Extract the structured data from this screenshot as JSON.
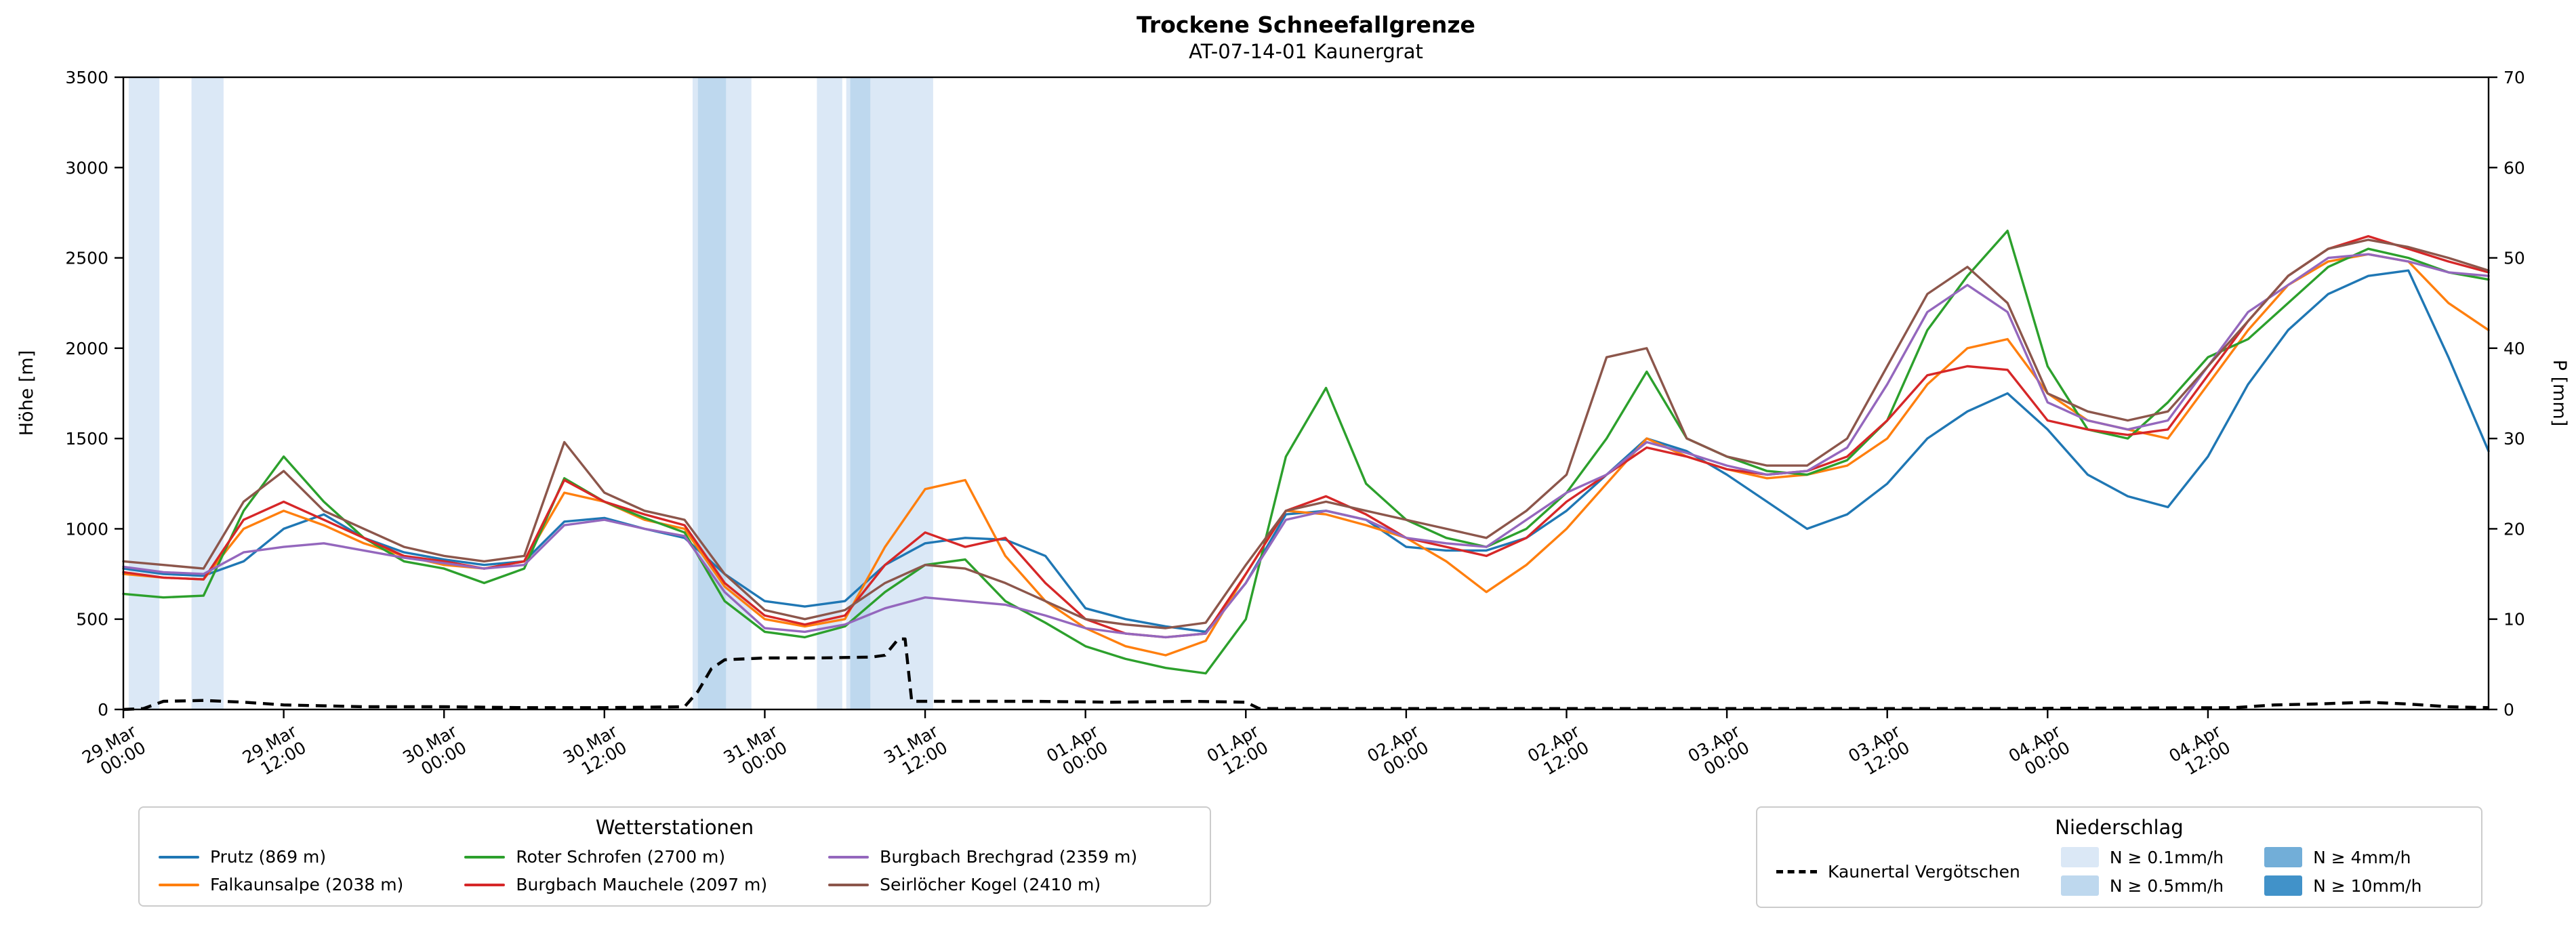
{
  "chart_data": {
    "type": "line",
    "title": "Trockene Schneefallgrenze",
    "subtitle": "AT-07-14-01 Kaunergrat",
    "ylabel_left": "Höhe [m]",
    "ylabel_right": "P [mm]",
    "ylim_left": [
      0,
      3500
    ],
    "ylim_right": [
      0,
      70
    ],
    "x_unit": "hours since 29.Mar 00:00",
    "x_hours_range": [
      0,
      177
    ],
    "grid": "off",
    "legend_left_title": "Wetterstationen",
    "legend_right_title": "Niederschlag",
    "yticks_left": [
      0,
      500,
      1000,
      1500,
      2000,
      2500,
      3000,
      3500
    ],
    "yticks_right": [
      0,
      10,
      20,
      30,
      40,
      50,
      60,
      70
    ],
    "xticks": [
      {
        "h": 0,
        "date": "29.Mar",
        "time": "00:00"
      },
      {
        "h": 12,
        "date": "29.Mar",
        "time": "12:00"
      },
      {
        "h": 24,
        "date": "30.Mar",
        "time": "00:00"
      },
      {
        "h": 36,
        "date": "30.Mar",
        "time": "12:00"
      },
      {
        "h": 48,
        "date": "31.Mar",
        "time": "00:00"
      },
      {
        "h": 60,
        "date": "31.Mar",
        "time": "12:00"
      },
      {
        "h": 72,
        "date": "01.Apr",
        "time": "00:00"
      },
      {
        "h": 84,
        "date": "01.Apr",
        "time": "12:00"
      },
      {
        "h": 96,
        "date": "02.Apr",
        "time": "00:00"
      },
      {
        "h": 108,
        "date": "02.Apr",
        "time": "12:00"
      },
      {
        "h": 120,
        "date": "03.Apr",
        "time": "00:00"
      },
      {
        "h": 132,
        "date": "03.Apr",
        "time": "12:00"
      },
      {
        "h": 144,
        "date": "04.Apr",
        "time": "00:00"
      },
      {
        "h": 156,
        "date": "04.Apr",
        "time": "12:00"
      }
    ],
    "x_grid": [
      0,
      3,
      6,
      9,
      12,
      15,
      18,
      21,
      24,
      27,
      30,
      33,
      36,
      39,
      42,
      45,
      48,
      51,
      54,
      57,
      60,
      63,
      66,
      69,
      72,
      75,
      78,
      81,
      84,
      87,
      90,
      93,
      96,
      99,
      102,
      105,
      108,
      111,
      114,
      117,
      120,
      123,
      126,
      129,
      132,
      135,
      138,
      141,
      144,
      147,
      150,
      153,
      156,
      159,
      162,
      165,
      168,
      171,
      174,
      177
    ],
    "series": [
      {
        "name": "Prutz (869 m)",
        "color": "#1f77b4",
        "values": [
          780,
          750,
          740,
          820,
          1000,
          1080,
          950,
          870,
          830,
          800,
          820,
          1040,
          1060,
          1000,
          950,
          750,
          600,
          570,
          600,
          800,
          920,
          950,
          940,
          850,
          560,
          500,
          460,
          430,
          700,
          1080,
          1100,
          1050,
          900,
          880,
          880,
          950,
          1100,
          1300,
          1500,
          1430,
          1300,
          1150,
          1000,
          1080,
          1250,
          1500,
          1650,
          1750,
          1550,
          1300,
          1180,
          1120,
          1400,
          1800,
          2100,
          2300,
          2400,
          2430,
          1950,
          1430
        ]
      },
      {
        "name": "Falkaunsalpe (2038 m)",
        "color": "#ff7f0e",
        "values": [
          750,
          730,
          720,
          1000,
          1100,
          1020,
          920,
          850,
          800,
          780,
          820,
          1200,
          1150,
          1050,
          1000,
          680,
          500,
          460,
          500,
          900,
          1220,
          1270,
          850,
          600,
          450,
          350,
          300,
          380,
          750,
          1100,
          1080,
          1020,
          950,
          820,
          650,
          800,
          1000,
          1250,
          1500,
          1400,
          1330,
          1280,
          1300,
          1350,
          1500,
          1800,
          2000,
          2050,
          1750,
          1600,
          1550,
          1500,
          1800,
          2100,
          2350,
          2480,
          2520,
          2480,
          2250,
          2100
        ]
      },
      {
        "name": "Roter Schrofen (2700 m)",
        "color": "#2ca02c",
        "values": [
          640,
          620,
          630,
          1100,
          1400,
          1150,
          950,
          820,
          780,
          700,
          780,
          1280,
          1150,
          1060,
          980,
          600,
          430,
          400,
          460,
          650,
          800,
          830,
          600,
          480,
          350,
          280,
          230,
          200,
          500,
          1400,
          1780,
          1250,
          1050,
          950,
          900,
          1000,
          1200,
          1500,
          1870,
          1500,
          1400,
          1320,
          1300,
          1380,
          1600,
          2100,
          2400,
          2650,
          1900,
          1550,
          1500,
          1700,
          1950,
          2050,
          2250,
          2450,
          2550,
          2500,
          2420,
          2380
        ]
      },
      {
        "name": "Burgbach Mauchele (2097 m)",
        "color": "#d62728",
        "values": [
          760,
          730,
          720,
          1050,
          1150,
          1050,
          950,
          850,
          820,
          780,
          820,
          1270,
          1150,
          1080,
          1020,
          700,
          520,
          470,
          520,
          800,
          980,
          900,
          950,
          700,
          500,
          420,
          400,
          420,
          750,
          1100,
          1180,
          1080,
          950,
          900,
          850,
          950,
          1150,
          1300,
          1450,
          1400,
          1330,
          1300,
          1320,
          1400,
          1600,
          1850,
          1900,
          1880,
          1600,
          1550,
          1520,
          1550,
          1850,
          2150,
          2400,
          2550,
          2620,
          2550,
          2480,
          2420
        ]
      },
      {
        "name": "Burgbach Brechgrad (2359 m)",
        "color": "#9467bd",
        "values": [
          790,
          760,
          750,
          870,
          900,
          920,
          880,
          840,
          810,
          780,
          800,
          1020,
          1050,
          1000,
          960,
          650,
          450,
          430,
          470,
          560,
          620,
          600,
          580,
          520,
          450,
          420,
          400,
          420,
          700,
          1050,
          1100,
          1050,
          950,
          920,
          900,
          1050,
          1200,
          1300,
          1480,
          1420,
          1350,
          1300,
          1320,
          1450,
          1800,
          2200,
          2350,
          2200,
          1700,
          1600,
          1550,
          1600,
          1900,
          2200,
          2350,
          2500,
          2520,
          2480,
          2420,
          2400
        ]
      },
      {
        "name": "Seirlöcher Kogel (2410 m)",
        "color": "#8c564b",
        "values": [
          820,
          800,
          780,
          1150,
          1320,
          1100,
          1000,
          900,
          850,
          820,
          850,
          1480,
          1200,
          1100,
          1050,
          750,
          550,
          500,
          550,
          700,
          800,
          780,
          700,
          600,
          500,
          470,
          450,
          480,
          800,
          1100,
          1150,
          1100,
          1050,
          1000,
          950,
          1100,
          1300,
          1950,
          2000,
          1500,
          1400,
          1350,
          1350,
          1500,
          1900,
          2300,
          2450,
          2250,
          1750,
          1650,
          1600,
          1650,
          1900,
          2150,
          2400,
          2550,
          2600,
          2560,
          2500,
          2430
        ]
      }
    ],
    "precip_line": {
      "name": "Kaunertal Vergötschen",
      "color": "#000000",
      "style": "dashed",
      "axis": "right",
      "x": [
        0,
        1.5,
        3,
        6,
        9,
        12,
        18,
        24,
        30,
        36,
        42,
        43,
        44,
        45,
        48,
        52,
        56,
        57,
        58,
        58.5,
        59,
        62,
        68,
        74,
        80,
        84,
        85,
        100,
        120,
        140,
        158,
        161,
        164,
        168,
        171,
        174,
        177
      ],
      "values": [
        0,
        0.1,
        0.9,
        1.0,
        0.8,
        0.5,
        0.3,
        0.3,
        0.2,
        0.2,
        0.3,
        2.0,
        4.5,
        5.5,
        5.7,
        5.7,
        5.8,
        6.0,
        7.8,
        7.8,
        0.9,
        0.9,
        0.9,
        0.8,
        0.9,
        0.8,
        0.1,
        0.1,
        0.1,
        0.1,
        0.2,
        0.5,
        0.6,
        0.8,
        0.6,
        0.3,
        0.2
      ]
    },
    "precip_bands": [
      {
        "from": 0.4,
        "to": 2.7,
        "level": "0.1"
      },
      {
        "from": 5.1,
        "to": 7.5,
        "level": "0.1"
      },
      {
        "from": 42.6,
        "to": 47.0,
        "level": "0.1"
      },
      {
        "from": 43.0,
        "to": 45.1,
        "level": "0.5"
      },
      {
        "from": 51.9,
        "to": 53.8,
        "level": "0.1"
      },
      {
        "from": 54.1,
        "to": 60.6,
        "level": "0.1"
      },
      {
        "from": 54.4,
        "to": 55.9,
        "level": "0.5"
      }
    ],
    "band_levels": [
      {
        "key": "0.1",
        "label": "N ≥ 0.1mm/h",
        "color": "#dbe8f6"
      },
      {
        "key": "0.5",
        "label": "N ≥ 0.5mm/h",
        "color": "#bed8ee"
      },
      {
        "key": "4",
        "label": "N ≥ 4mm/h",
        "color": "#72aed8"
      },
      {
        "key": "10",
        "label": "N ≥ 10mm/h",
        "color": "#4192c9"
      }
    ]
  }
}
